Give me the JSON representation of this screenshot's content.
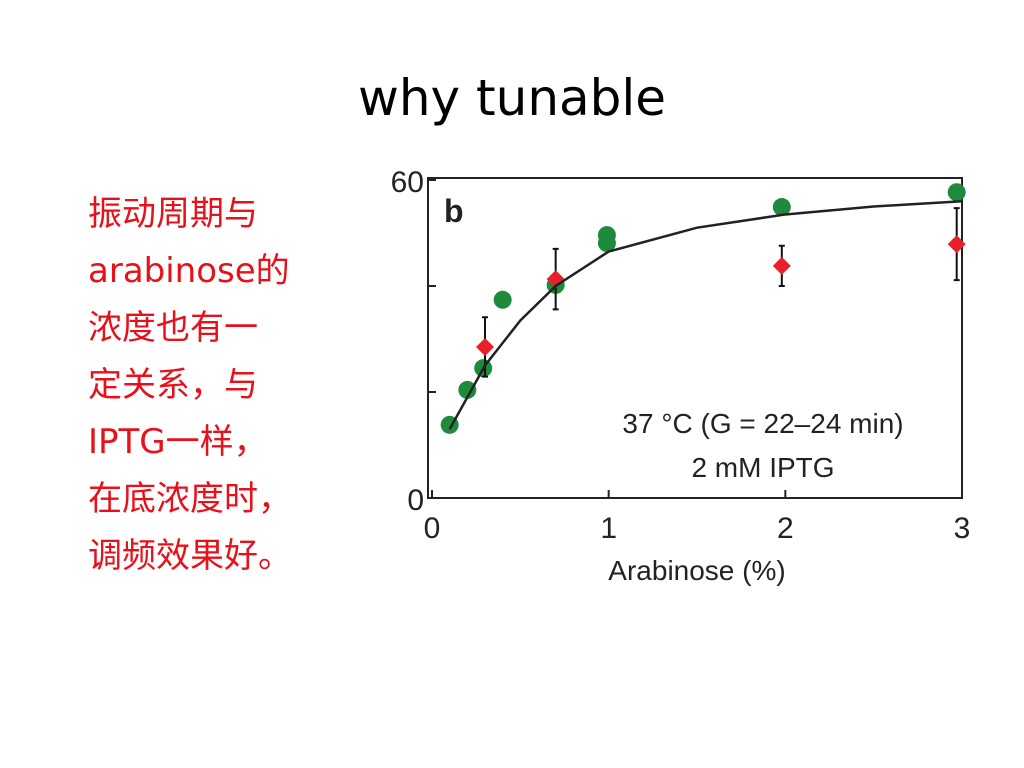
{
  "title": "why tunable",
  "note_lines": [
    "振动周期与",
    "arabinose的",
    "浓度也有一",
    "定关系，与",
    "IPTG一样，",
    "在底浓度时，",
    "调频效果好。"
  ],
  "chart_data": {
    "type": "scatter",
    "panel_label": "b",
    "annotations": [
      "37 °C (G = 22–24 min)",
      "2 mM IPTG"
    ],
    "x_label": "Arabinose (%)",
    "xlim": [
      0,
      3
    ],
    "xticks": [
      0,
      1,
      2,
      3
    ],
    "ylim": [
      0,
      60
    ],
    "yticks": [
      0,
      60
    ],
    "yminor_ticks": [
      20,
      40
    ],
    "series": [
      {
        "mode": "markers",
        "marker": "circle",
        "color": "#1e8a3c",
        "x": [
          0.1,
          0.2,
          0.29,
          0.4,
          0.7,
          0.99,
          0.99,
          1.98,
          2.97
        ],
        "values": [
          13.8,
          20.4,
          24.5,
          37.4,
          40.2,
          49.6,
          48.1,
          54.9,
          57.7
        ]
      },
      {
        "mode": "markers",
        "marker": "diamond",
        "color": "#e8202a",
        "x": [
          0.3,
          0.7,
          1.98,
          2.97
        ],
        "values": [
          28.5,
          41.3,
          43.8,
          47.9
        ],
        "errors": [
          5.6,
          5.7,
          3.8,
          6.8
        ]
      },
      {
        "mode": "line",
        "color": "#222222",
        "x": [
          0.1,
          0.3,
          0.5,
          0.7,
          1.0,
          1.5,
          2.0,
          2.5,
          3.0
        ],
        "values": [
          13,
          25,
          33.5,
          40,
          46.5,
          51,
          53.5,
          55,
          56
        ]
      }
    ]
  }
}
